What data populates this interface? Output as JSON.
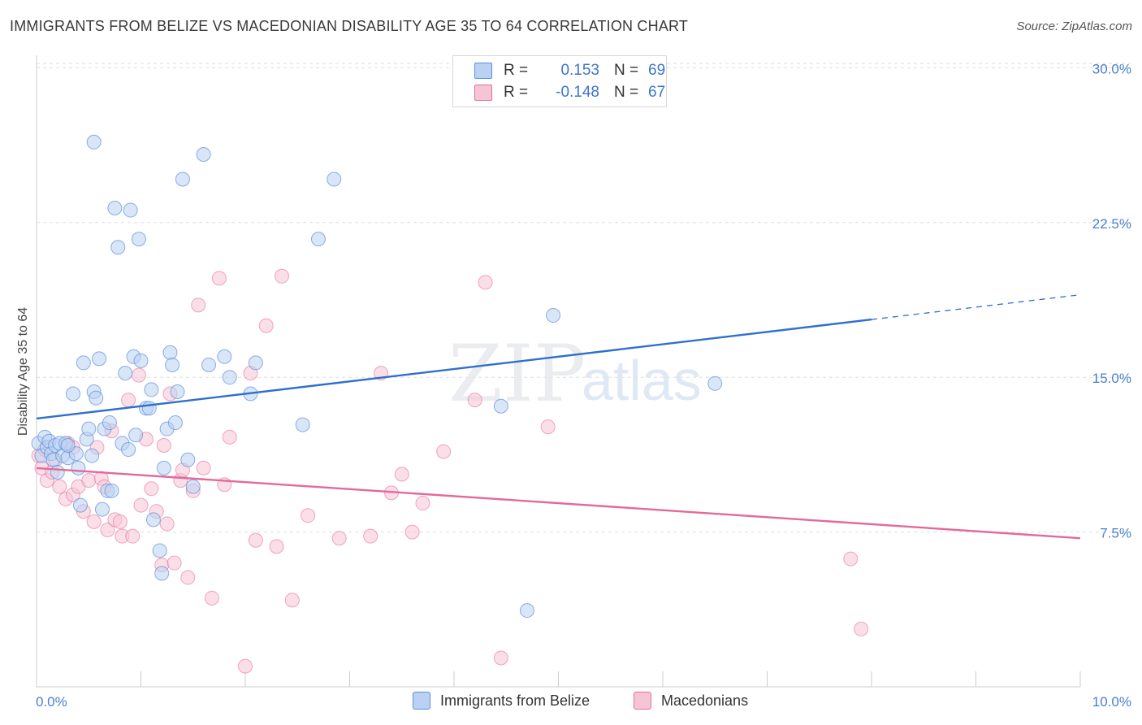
{
  "title": "IMMIGRANTS FROM BELIZE VS MACEDONIAN DISABILITY AGE 35 TO 64 CORRELATION CHART",
  "source": "Source: ZipAtlas.com",
  "watermark": {
    "zip": "ZIP",
    "atlas": "atlas"
  },
  "legend": {
    "rows": [
      {
        "r_label": "R =",
        "r_value": "0.153",
        "n_label": "N =",
        "n_value": "69"
      },
      {
        "r_label": "R =",
        "r_value": "-0.148",
        "n_label": "N =",
        "n_value": "67"
      }
    ]
  },
  "bottom_legend": {
    "series1": "Immigrants from Belize",
    "series2": "Macedonians"
  },
  "chart_data": {
    "type": "scatter",
    "title": "IMMIGRANTS FROM BELIZE VS MACEDONIAN DISABILITY AGE 35 TO 64 CORRELATION CHART",
    "xlabel": "",
    "ylabel": "Disability Age 35 to 64",
    "xlim": [
      0,
      10
    ],
    "ylim": [
      0,
      31
    ],
    "x_tick_labels": [
      "0.0%",
      "10.0%"
    ],
    "y_ticks": [
      7.5,
      15.0,
      22.5,
      30.0
    ],
    "y_tick_labels": [
      "7.5%",
      "15.0%",
      "22.5%",
      "30.0%"
    ],
    "grid": "horizontal dashed",
    "legend_position": "top-center",
    "colors": {
      "series1": "#5b8fd9",
      "series1_fill": "#b9d2f3",
      "series2": "#e36f9a",
      "series2_fill": "#f7c4d5"
    },
    "series": [
      {
        "name": "Immigrants from Belize",
        "R": 0.153,
        "N": 69,
        "trend": {
          "x0": 0.0,
          "y0": 13.0,
          "x1": 8.0,
          "y1": 17.8,
          "dashed_to_x": 10.0,
          "dashed_to_y": 19.0
        },
        "points": [
          [
            0.02,
            11.8
          ],
          [
            0.05,
            11.2
          ],
          [
            0.08,
            12.1
          ],
          [
            0.1,
            11.6
          ],
          [
            0.12,
            11.9
          ],
          [
            0.14,
            11.3
          ],
          [
            0.16,
            11.0
          ],
          [
            0.18,
            11.7
          ],
          [
            0.2,
            10.4
          ],
          [
            0.22,
            11.8
          ],
          [
            0.25,
            11.2
          ],
          [
            0.28,
            11.8
          ],
          [
            0.3,
            11.1
          ],
          [
            0.35,
            14.2
          ],
          [
            0.38,
            11.3
          ],
          [
            0.4,
            10.6
          ],
          [
            0.42,
            8.8
          ],
          [
            0.45,
            15.7
          ],
          [
            0.48,
            12.0
          ],
          [
            0.5,
            12.5
          ],
          [
            0.53,
            11.2
          ],
          [
            0.55,
            14.3
          ],
          [
            0.57,
            14.0
          ],
          [
            0.6,
            15.9
          ],
          [
            0.63,
            8.6
          ],
          [
            0.65,
            12.5
          ],
          [
            0.68,
            9.5
          ],
          [
            0.72,
            9.5
          ],
          [
            0.75,
            23.2
          ],
          [
            0.78,
            21.3
          ],
          [
            0.82,
            11.8
          ],
          [
            0.85,
            15.2
          ],
          [
            0.88,
            11.5
          ],
          [
            0.9,
            23.1
          ],
          [
            0.93,
            16.0
          ],
          [
            0.95,
            12.2
          ],
          [
            0.98,
            21.7
          ],
          [
            1.0,
            15.8
          ],
          [
            1.05,
            13.5
          ],
          [
            1.08,
            13.5
          ],
          [
            1.1,
            14.4
          ],
          [
            1.12,
            8.1
          ],
          [
            1.18,
            6.6
          ],
          [
            1.22,
            10.6
          ],
          [
            1.25,
            12.5
          ],
          [
            1.28,
            16.2
          ],
          [
            1.3,
            15.6
          ],
          [
            1.33,
            12.8
          ],
          [
            1.35,
            14.3
          ],
          [
            1.4,
            24.6
          ],
          [
            1.45,
            11.0
          ],
          [
            1.5,
            9.7
          ],
          [
            1.6,
            25.8
          ],
          [
            1.65,
            15.6
          ],
          [
            1.8,
            16.0
          ],
          [
            1.85,
            15.0
          ],
          [
            2.05,
            14.2
          ],
          [
            2.1,
            15.7
          ],
          [
            2.55,
            12.7
          ],
          [
            2.7,
            21.7
          ],
          [
            2.85,
            24.6
          ],
          [
            4.45,
            13.6
          ],
          [
            4.7,
            3.7
          ],
          [
            4.95,
            18.0
          ],
          [
            6.5,
            14.7
          ],
          [
            0.55,
            26.4
          ],
          [
            0.7,
            12.8
          ],
          [
            1.2,
            5.5
          ],
          [
            0.3,
            11.7
          ]
        ]
      },
      {
        "name": "Macedonians",
        "R": -0.148,
        "N": 67,
        "trend": {
          "x0": 0.0,
          "y0": 10.6,
          "x1": 10.0,
          "y1": 7.2
        },
        "points": [
          [
            0.02,
            11.2
          ],
          [
            0.05,
            10.6
          ],
          [
            0.08,
            11.5
          ],
          [
            0.1,
            10.0
          ],
          [
            0.15,
            10.4
          ],
          [
            0.18,
            11.0
          ],
          [
            0.22,
            9.7
          ],
          [
            0.28,
            9.1
          ],
          [
            0.3,
            11.8
          ],
          [
            0.35,
            9.3
          ],
          [
            0.4,
            9.7
          ],
          [
            0.45,
            8.5
          ],
          [
            0.5,
            10.0
          ],
          [
            0.55,
            8.0
          ],
          [
            0.58,
            11.6
          ],
          [
            0.62,
            10.1
          ],
          [
            0.65,
            9.7
          ],
          [
            0.68,
            7.6
          ],
          [
            0.72,
            12.4
          ],
          [
            0.75,
            8.1
          ],
          [
            0.8,
            8.0
          ],
          [
            0.82,
            7.3
          ],
          [
            0.88,
            13.9
          ],
          [
            0.92,
            7.3
          ],
          [
            0.98,
            15.1
          ],
          [
            1.0,
            8.8
          ],
          [
            1.05,
            12.0
          ],
          [
            1.1,
            9.6
          ],
          [
            1.15,
            8.5
          ],
          [
            1.2,
            5.9
          ],
          [
            1.22,
            11.7
          ],
          [
            1.25,
            7.9
          ],
          [
            1.28,
            14.2
          ],
          [
            1.32,
            6.0
          ],
          [
            1.38,
            10.0
          ],
          [
            1.4,
            10.5
          ],
          [
            1.45,
            5.3
          ],
          [
            1.5,
            9.5
          ],
          [
            1.55,
            18.5
          ],
          [
            1.6,
            10.6
          ],
          [
            1.68,
            4.3
          ],
          [
            1.75,
            19.8
          ],
          [
            1.8,
            9.8
          ],
          [
            1.85,
            12.1
          ],
          [
            2.0,
            1.0
          ],
          [
            2.05,
            15.2
          ],
          [
            2.1,
            7.1
          ],
          [
            2.2,
            17.5
          ],
          [
            2.3,
            6.8
          ],
          [
            2.35,
            19.9
          ],
          [
            2.45,
            4.2
          ],
          [
            2.6,
            8.3
          ],
          [
            2.9,
            7.2
          ],
          [
            3.2,
            7.3
          ],
          [
            3.3,
            15.2
          ],
          [
            3.4,
            9.4
          ],
          [
            3.5,
            10.3
          ],
          [
            3.6,
            7.5
          ],
          [
            3.7,
            8.9
          ],
          [
            3.9,
            11.4
          ],
          [
            4.2,
            13.9
          ],
          [
            4.3,
            19.6
          ],
          [
            4.45,
            1.4
          ],
          [
            4.9,
            12.6
          ],
          [
            7.8,
            6.2
          ],
          [
            7.9,
            2.8
          ],
          [
            0.35,
            11.6
          ]
        ]
      }
    ]
  }
}
